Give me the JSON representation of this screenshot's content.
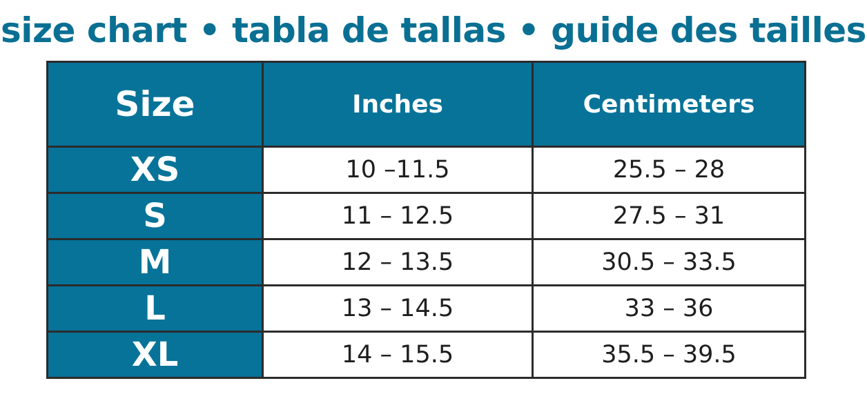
{
  "title": "size chart • tabla de tallas • guide des tailles",
  "colors": {
    "accent": "#077399",
    "title": "#0a7093",
    "border": "#2b2b2b"
  },
  "table": {
    "headers": [
      "Size",
      "Inches",
      "Centimeters"
    ],
    "rows": [
      {
        "size": "XS",
        "inches": "10 –11.5",
        "cm": "25.5 – 28"
      },
      {
        "size": "S",
        "inches": "11 – 12.5",
        "cm": "27.5 – 31"
      },
      {
        "size": "M",
        "inches": "12 – 13.5",
        "cm": "30.5 – 33.5"
      },
      {
        "size": "L",
        "inches": "13 – 14.5",
        "cm": "33 – 36"
      },
      {
        "size": "XL",
        "inches": "14 – 15.5",
        "cm": "35.5 – 39.5"
      }
    ]
  }
}
